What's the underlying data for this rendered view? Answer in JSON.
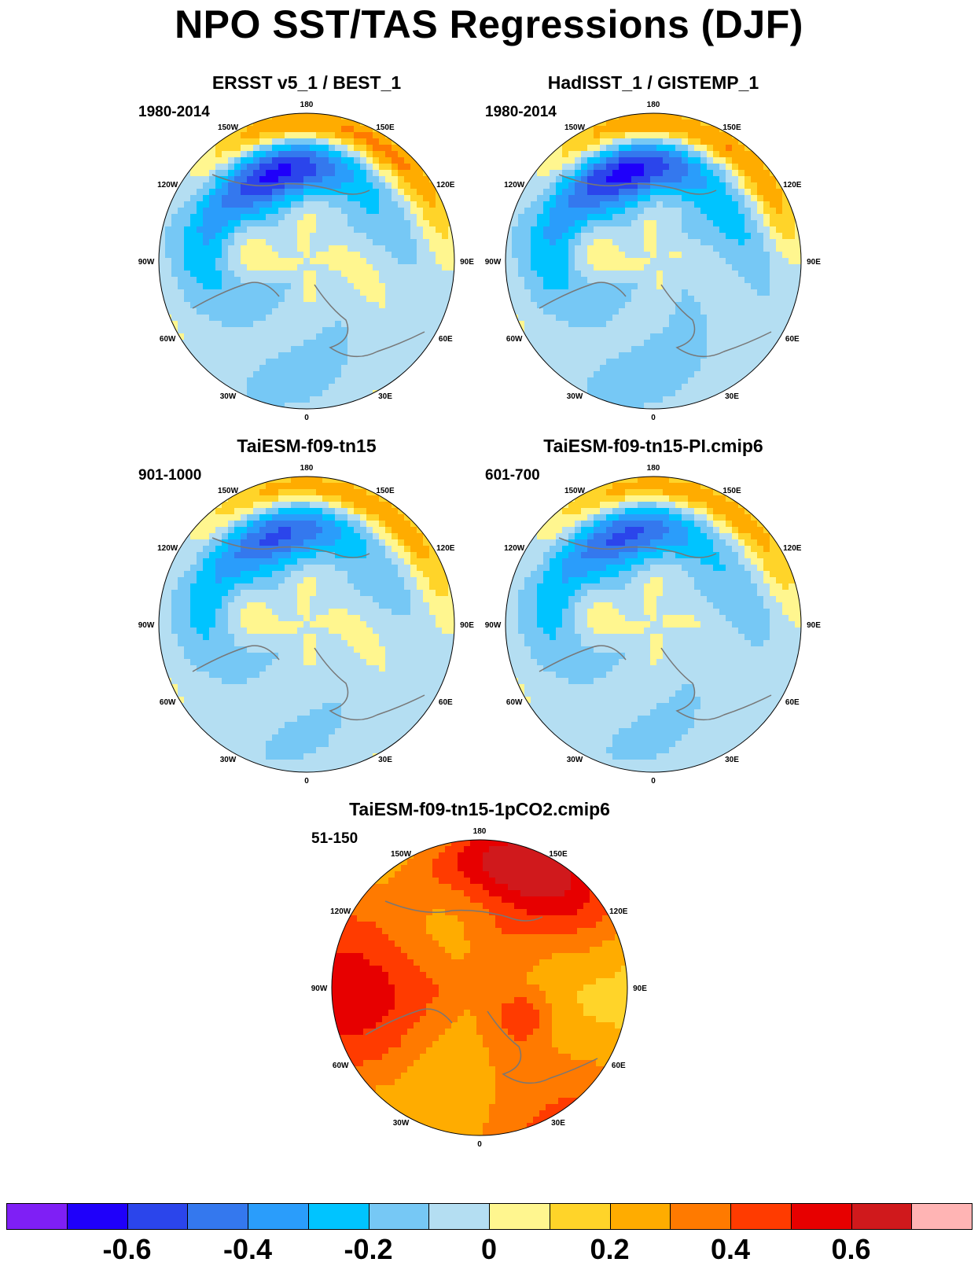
{
  "title": "NPO SST/TAS Regressions (DJF)",
  "axis_labels": {
    "top": "180",
    "bottom": "0",
    "upper_left": "150W",
    "upper_right": "150E",
    "mid_upper_left": "120W",
    "mid_upper_right": "120E",
    "left": "90W",
    "right": "90E",
    "mid_lower_left": "60W",
    "mid_lower_right": "60E",
    "lower_left": "30W",
    "lower_right": "30E"
  },
  "panels": [
    {
      "title": "ERSST v5_1 / BEST_1",
      "period": "1980-2014",
      "pattern": "observed",
      "amplitude": 0.3
    },
    {
      "title": "HadISST_1 / GISTEMP_1",
      "period": "1980-2014",
      "pattern": "observed2",
      "amplitude": 0.3
    },
    {
      "title": "TaiESM-f09-tn15",
      "period": "901-1000",
      "pattern": "model",
      "amplitude": 0.25
    },
    {
      "title": "TaiESM-f09-tn15-PI.cmip6",
      "period": "601-700",
      "pattern": "model2",
      "amplitude": 0.25
    },
    {
      "title": "TaiESM-f09-tn15-1pCO2.cmip6",
      "period": "51-150",
      "pattern": "warming",
      "amplitude": 0.45
    }
  ],
  "colorbar": {
    "colors": [
      "#7f1ff5",
      "#1f00fa",
      "#2b45eb",
      "#3478ee",
      "#2a9dfb",
      "#00c4ff",
      "#76c8f5",
      "#b4def2",
      "#fff68f",
      "#ffd429",
      "#ffac00",
      "#ff7a00",
      "#ff3b00",
      "#e70000",
      "#d0191c",
      "#ffb4b4"
    ],
    "tick_labels": [
      "-0.6",
      "-0.4",
      "-0.2",
      "0",
      "0.2",
      "0.4",
      "0.6"
    ],
    "tick_values": [
      -0.6,
      -0.4,
      -0.2,
      0,
      0.2,
      0.4,
      0.6
    ]
  }
}
